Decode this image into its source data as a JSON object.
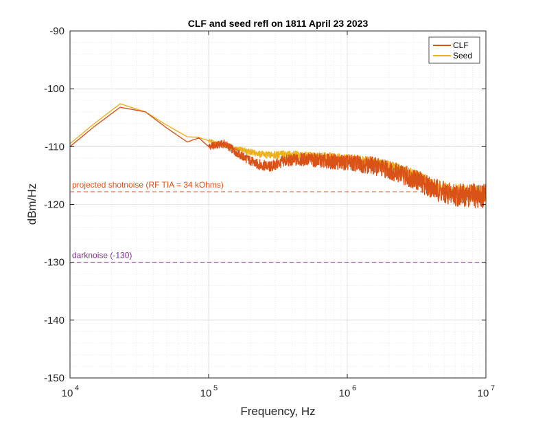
{
  "chart_data": {
    "type": "line",
    "title": "CLF and seed refl on 1811 April 23 2023",
    "xlabel": "Frequency, Hz",
    "ylabel": "dBm/Hz",
    "xscale": "log",
    "xlim": [
      10000,
      10000000
    ],
    "ylim": [
      -150,
      -90
    ],
    "x_ticks": [
      {
        "base": "10",
        "exp": "4",
        "value": 10000
      },
      {
        "base": "10",
        "exp": "5",
        "value": 100000
      },
      {
        "base": "10",
        "exp": "6",
        "value": 1000000
      },
      {
        "base": "10",
        "exp": "7",
        "value": 10000000
      }
    ],
    "y_ticks": [
      "-150",
      "-140",
      "-130",
      "-120",
      "-110",
      "-100",
      "-90"
    ],
    "grid": true,
    "minor_grid": true,
    "legend_position": "top-right",
    "series": [
      {
        "name": "CLF",
        "color": "#d95319",
        "x": [
          10000,
          15000,
          23000,
          35000,
          50000,
          70000,
          85000,
          100000,
          130000,
          170000,
          220000,
          280000,
          350000,
          500000,
          700000,
          1000000,
          1500000,
          2000000,
          3000000,
          4000000,
          5000000,
          7000000,
          10000000
        ],
        "y": [
          -110.0,
          -106.5,
          -103.2,
          -104.0,
          -106.8,
          -109.2,
          -108.5,
          -110.0,
          -109.5,
          -111.5,
          -113.0,
          -113.5,
          -112.5,
          -112.2,
          -112.5,
          -112.8,
          -113.2,
          -114.0,
          -115.5,
          -117.0,
          -118.0,
          -118.5,
          -118.5
        ]
      },
      {
        "name": "Seed",
        "color": "#edb120",
        "x": [
          10000,
          15000,
          23000,
          35000,
          50000,
          70000,
          85000,
          100000,
          130000,
          170000,
          220000,
          280000,
          350000,
          500000,
          700000,
          1000000,
          1500000,
          2000000,
          3000000,
          4000000,
          5000000,
          7000000,
          10000000
        ],
        "y": [
          -109.5,
          -106.0,
          -102.6,
          -104.0,
          -106.3,
          -108.3,
          -108.4,
          -109.0,
          -109.8,
          -110.5,
          -111.2,
          -111.5,
          -111.3,
          -111.6,
          -111.8,
          -112.2,
          -112.8,
          -113.5,
          -115.0,
          -116.5,
          -117.5,
          -118.0,
          -118.3
        ]
      }
    ],
    "reference_lines": [
      {
        "y": -117.8,
        "label": "projected shotnoise (RF TIA = 34 kOhms)",
        "color": "#d95319"
      },
      {
        "y": -130,
        "label": "darknoise (-130)",
        "color": "#7e2f8e"
      }
    ]
  }
}
